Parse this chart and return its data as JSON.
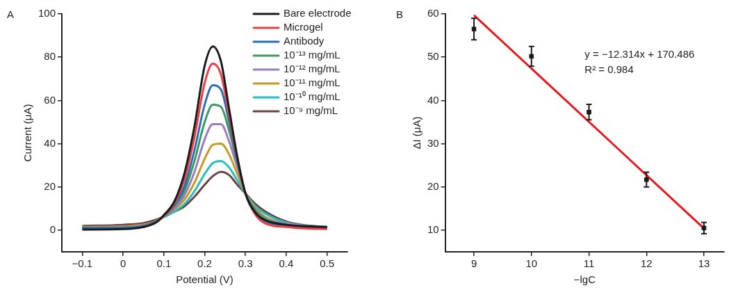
{
  "chart_data": [
    {
      "type": "line",
      "xlabel": "Potential (V)",
      "ylabel": "Current (μA)",
      "annotations": [
        "A"
      ],
      "legend": "top right",
      "grid": false,
      "marker": "none",
      "xlim": [
        -0.15,
        0.55
      ],
      "xticks": [
        {
          "value": -0.1,
          "label": "−0.1"
        },
        0,
        0.1,
        0.2,
        0.3,
        0.4,
        0.5
      ],
      "ylim": [
        -10,
        100
      ],
      "yticks": [
        0,
        20,
        40,
        60,
        80,
        100
      ],
      "x": [
        -0.1,
        0,
        0.05,
        0.08,
        0.1,
        0.125,
        0.15,
        0.175,
        0.2,
        0.22,
        0.24,
        0.26,
        0.28,
        0.3,
        0.325,
        0.35,
        0.4,
        0.45,
        0.5
      ],
      "series": [
        {
          "name": "Bare electrode",
          "color": "#1a1a1a",
          "values": [
            0.3,
            0.5,
            1.5,
            3.5,
            7,
            13,
            26,
            48,
            76,
            85,
            78,
            56,
            34,
            17,
            8,
            4.5,
            2.5,
            1.8,
            1.5
          ]
        },
        {
          "name": "Microgel",
          "color": "#e8414a",
          "values": [
            null,
            null,
            1.5,
            3.5,
            6.5,
            12,
            23,
            43,
            68,
            77,
            72,
            53,
            33,
            17,
            7,
            3,
            1.5,
            0.8,
            0.5
          ]
        },
        {
          "name": "Antibody",
          "color": "#2a6db5",
          "values": [
            1,
            1,
            1.8,
            3.8,
            6.5,
            11.5,
            20,
            37,
            58,
            67,
            65,
            50,
            32,
            17,
            8,
            4,
            2,
            1.2,
            1
          ]
        },
        {
          "name": "10⁻¹³ mg/mL",
          "color": "#3a9a5c",
          "values": [
            1,
            1.2,
            2,
            4,
            6.5,
            11,
            18,
            32,
            50,
            58,
            57,
            46,
            31,
            17,
            9,
            5,
            2.5,
            1.5,
            1
          ]
        },
        {
          "name": "10⁻¹² mg/mL",
          "color": "#9b7cc4",
          "values": [
            1.2,
            1.5,
            2.3,
            4,
            6.5,
            10,
            16,
            27,
            42,
            49,
            49,
            41,
            29,
            17,
            9.5,
            5.5,
            3,
            1.8,
            1.2
          ]
        },
        {
          "name": "10⁻¹¹ mg/mL",
          "color": "#c49a22",
          "values": [
            1.5,
            1.8,
            2.6,
            4.2,
            6.5,
            9.5,
            14,
            22,
            33,
            39.5,
            40,
            35,
            26,
            17,
            10,
            6,
            3,
            1.8,
            1.2
          ]
        },
        {
          "name": "10⁻¹⁰ mg/mL",
          "color": "#2bbcbc",
          "values": [
            null,
            null,
            null,
            4.3,
            6,
            8.5,
            12,
            18,
            26,
            31,
            32,
            29,
            23,
            17,
            11,
            7.5,
            3.5,
            2,
            1.2
          ]
        },
        {
          "name": "10⁻⁹ mg/mL",
          "color": "#6b4040",
          "values": [
            2,
            2.5,
            3.3,
            4.8,
            6.3,
            8.5,
            11,
            15.5,
            21,
            25,
            27,
            25.5,
            21,
            17,
            12,
            8.5,
            4,
            2.2,
            1.5
          ]
        }
      ]
    },
    {
      "type": "scatter",
      "xlabel": "−lgC",
      "ylabel": "ΔI (μA)",
      "annotations": [
        "B",
        "y = −12.314x + 170.486",
        "R² = 0.984"
      ],
      "grid": false,
      "legend": false,
      "xlim": [
        8.5,
        13.35
      ],
      "xticks": [
        9,
        10,
        11,
        12,
        13
      ],
      "ylim": [
        5,
        60
      ],
      "yticks": [
        10,
        20,
        30,
        40,
        50,
        60
      ],
      "x": [
        9,
        10,
        11,
        12,
        13
      ],
      "series": [
        {
          "color": "#1a1a1a",
          "marker": "square",
          "values": [
            56.5,
            50.2,
            37.3,
            21.7,
            10.5
          ],
          "errors": [
            2.5,
            2.3,
            1.8,
            1.7,
            1.3
          ]
        },
        {
          "type": "line",
          "color": "#e8191e",
          "x": [
            9,
            13
          ],
          "values": [
            59.7,
            10.4
          ]
        }
      ]
    }
  ]
}
